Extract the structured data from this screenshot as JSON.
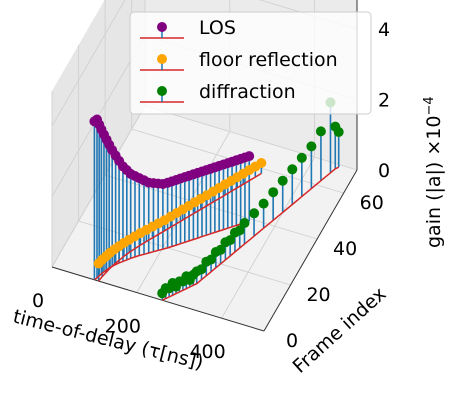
{
  "chart_data": {
    "type": "3d-stem",
    "xlabel": "time-of-delay (τ[ns])",
    "ylabel": "Frame index",
    "zlabel": "gain (|a|) ×10",
    "zlabel_exp": "−4",
    "xlim": [
      0,
      500
    ],
    "ylim": [
      0,
      70
    ],
    "zlim": [
      0,
      5
    ],
    "xticks": [
      "0",
      "200",
      "400"
    ],
    "yticks": [
      "0",
      "20",
      "40",
      "60"
    ],
    "zticks": [
      "0",
      "2",
      "4"
    ],
    "xtick_values": [
      0,
      200,
      400
    ],
    "ytick_values": [
      0,
      20,
      40,
      60
    ],
    "ztick_values": [
      0,
      2,
      4
    ],
    "grid": true,
    "legend_position": "top",
    "colors": {
      "stem": "#1f77b4",
      "baseline": "#d62728",
      "LOS": "#800080",
      "floor reflection": "#ffa500",
      "diffraction": "#008000"
    },
    "series": [
      {
        "name": "LOS",
        "color": "#800080",
        "points": [
          [
            100,
            0,
            4.5
          ],
          [
            103,
            1,
            4.5
          ],
          [
            105,
            2,
            4.3
          ],
          [
            107,
            3,
            4.1
          ],
          [
            110,
            4,
            3.9
          ],
          [
            113,
            5,
            3.7
          ],
          [
            116,
            6,
            3.5
          ],
          [
            120,
            7,
            3.3
          ],
          [
            125,
            8,
            3.1
          ],
          [
            130,
            9,
            2.9
          ],
          [
            136,
            10,
            2.7
          ],
          [
            142,
            11,
            2.55
          ],
          [
            148,
            12,
            2.4
          ],
          [
            155,
            13,
            2.3
          ],
          [
            162,
            14,
            2.2
          ],
          [
            170,
            15,
            2.1
          ],
          [
            178,
            16,
            2.0
          ],
          [
            186,
            17,
            1.95
          ],
          [
            194,
            18,
            1.9
          ],
          [
            202,
            19,
            1.85
          ],
          [
            210,
            20,
            1.85
          ],
          [
            217,
            21,
            1.85
          ],
          [
            224,
            22,
            1.85
          ],
          [
            231,
            23,
            1.85
          ],
          [
            238,
            24,
            1.85
          ],
          [
            245,
            25,
            1.85
          ],
          [
            252,
            26,
            1.85
          ],
          [
            259,
            27,
            1.85
          ],
          [
            266,
            28,
            1.85
          ],
          [
            273,
            29,
            1.85
          ],
          [
            280,
            30,
            1.85
          ],
          [
            287,
            31,
            1.85
          ],
          [
            294,
            32,
            1.85
          ],
          [
            301,
            33,
            1.85
          ],
          [
            308,
            34,
            1.85
          ],
          [
            315,
            35,
            1.85
          ],
          [
            322,
            36,
            1.85
          ],
          [
            329,
            37,
            1.85
          ],
          [
            336,
            38,
            1.85
          ],
          [
            343,
            39,
            1.85
          ]
        ]
      },
      {
        "name": "floor reflection",
        "color": "#ffa500",
        "points": [
          [
            110,
            0,
            0.5
          ],
          [
            112,
            2,
            0.48
          ],
          [
            115,
            4,
            0.46
          ],
          [
            118,
            6,
            0.44
          ],
          [
            122,
            8,
            0.42
          ],
          [
            127,
            10,
            0.4
          ],
          [
            132,
            12,
            0.38
          ],
          [
            138,
            14,
            0.36
          ],
          [
            145,
            16,
            0.35
          ],
          [
            152,
            18,
            0.34
          ],
          [
            160,
            20,
            0.33
          ],
          [
            168,
            22,
            0.32
          ],
          [
            176,
            24,
            0.31
          ],
          [
            184,
            26,
            0.3
          ],
          [
            192,
            28,
            0.3
          ],
          [
            200,
            30,
            0.3
          ],
          [
            208,
            32,
            0.3
          ],
          [
            216,
            34,
            0.3
          ],
          [
            224,
            36,
            0.3
          ],
          [
            232,
            38,
            0.3
          ],
          [
            240,
            40,
            0.3
          ],
          [
            248,
            42,
            0.3
          ],
          [
            256,
            44,
            0.3
          ],
          [
            264,
            46,
            0.3
          ],
          [
            272,
            48,
            0.3
          ],
          [
            280,
            50,
            0.3
          ],
          [
            288,
            52,
            0.3
          ],
          [
            296,
            54,
            0.3
          ],
          [
            304,
            56,
            0.3
          ],
          [
            312,
            58,
            0.3
          ]
        ]
      },
      {
        "name": "diffraction",
        "color": "#008000",
        "points": [
          [
            260,
            0,
            0.2
          ],
          [
            265,
            1,
            0.3
          ],
          [
            270,
            2,
            0.25
          ],
          [
            275,
            3,
            0.35
          ],
          [
            280,
            4,
            0.2
          ],
          [
            285,
            5,
            0.3
          ],
          [
            290,
            6,
            0.25
          ],
          [
            295,
            7,
            0.35
          ],
          [
            300,
            8,
            0.2
          ],
          [
            305,
            9,
            0.3
          ],
          [
            310,
            10,
            0.35
          ],
          [
            315,
            12,
            0.3
          ],
          [
            320,
            14,
            0.4
          ],
          [
            325,
            16,
            0.35
          ],
          [
            330,
            18,
            0.45
          ],
          [
            335,
            20,
            0.4
          ],
          [
            340,
            22,
            0.5
          ],
          [
            345,
            24,
            0.45
          ],
          [
            350,
            26,
            0.55
          ],
          [
            355,
            28,
            0.5
          ],
          [
            360,
            30,
            0.6
          ],
          [
            370,
            34,
            0.65
          ],
          [
            380,
            38,
            0.7
          ],
          [
            390,
            42,
            0.8
          ],
          [
            400,
            46,
            0.9
          ],
          [
            410,
            50,
            1.0
          ],
          [
            420,
            54,
            1.1
          ],
          [
            430,
            58,
            1.2
          ],
          [
            440,
            62,
            1.4
          ],
          [
            450,
            66,
            2.0
          ],
          [
            455,
            68,
            1.2
          ],
          [
            460,
            69,
            1.0
          ]
        ]
      }
    ]
  }
}
